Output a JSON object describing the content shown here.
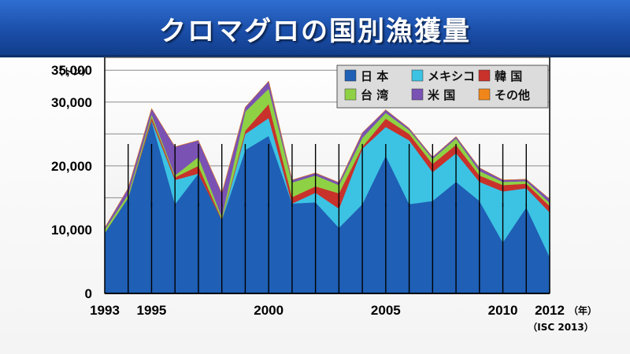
{
  "title": "クロマグロの国別漁獲量",
  "chart_data": {
    "type": "area",
    "stacked": true,
    "title": "クロマグロの国別漁獲量",
    "y_unit": "（トン）",
    "x_unit": "（年）",
    "source": "（ISC 2013）",
    "ylim": [
      0,
      37000
    ],
    "yticks": [
      0,
      10000,
      20000,
      30000,
      35000
    ],
    "ytick_labels": [
      "0",
      "10,000",
      "20,000",
      "30,000",
      "35,000"
    ],
    "xticks": [
      1993,
      1995,
      2000,
      2005,
      2010,
      2012
    ],
    "x": [
      1993,
      1994,
      1995,
      1996,
      1997,
      1998,
      1999,
      2000,
      2001,
      2002,
      2003,
      2004,
      2005,
      2006,
      2007,
      2008,
      2009,
      2010,
      2011,
      2012
    ],
    "grid": true,
    "legend_position": "top-right",
    "series": [
      {
        "name": "日 本",
        "color": "#1f5fb5",
        "values": [
          9500,
          15000,
          27000,
          14000,
          18800,
          11500,
          22500,
          24700,
          14100,
          14300,
          10300,
          14000,
          21600,
          14000,
          14500,
          17500,
          14500,
          8000,
          13500,
          5700
        ]
      },
      {
        "name": "メキシコ",
        "color": "#3cc3e3",
        "values": [
          0,
          0,
          100,
          3800,
          0,
          0,
          2500,
          2800,
          0,
          1500,
          3000,
          8700,
          4500,
          10000,
          4500,
          4500,
          3000,
          8000,
          3000,
          7000
        ]
      },
      {
        "name": "韓 国",
        "color": "#c9312b",
        "values": [
          0,
          0,
          500,
          400,
          1200,
          100,
          500,
          2200,
          1000,
          1000,
          2400,
          300,
          1300,
          1000,
          1300,
          1300,
          1000,
          1000,
          700,
          1000
        ]
      },
      {
        "name": "台 湾",
        "color": "#8fd144",
        "values": [
          500,
          500,
          500,
          300,
          1400,
          400,
          3000,
          2400,
          2300,
          1700,
          1300,
          1400,
          900,
          600,
          800,
          1000,
          700,
          500,
          400,
          500
        ]
      },
      {
        "name": "米 国",
        "color": "#7a52b3",
        "values": [
          300,
          1000,
          900,
          4500,
          2600,
          3700,
          700,
          1200,
          400,
          400,
          400,
          800,
          500,
          300,
          300,
          300,
          500,
          300,
          300,
          600
        ]
      },
      {
        "name": "その他",
        "color": "#f0861a",
        "values": [
          0,
          0,
          0,
          0,
          0,
          0,
          0,
          0,
          0,
          0,
          0,
          0,
          0,
          0,
          0,
          0,
          0,
          0,
          0,
          0
        ]
      }
    ]
  }
}
